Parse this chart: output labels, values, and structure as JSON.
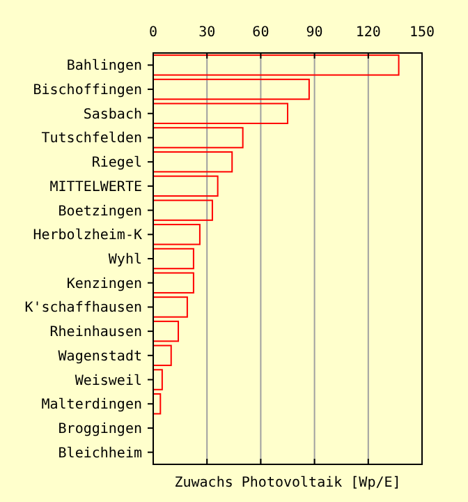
{
  "chart_data": {
    "type": "bar",
    "orientation": "horizontal",
    "xlabel": "Zuwachs Photovoltaik [Wp/E]",
    "categories": [
      "Bahlingen",
      "Bischoffingen",
      "Sasbach",
      "Tutschfelden",
      "Riegel",
      "MITTELWERTE",
      "Boetzingen",
      "Herbolzheim-K",
      "Wyhl",
      "Kenzingen",
      "K'schaffhausen",
      "Rheinhausen",
      "Wagenstadt",
      "Weisweil",
      "Malterdingen",
      "Broggingen",
      "Bleichheim"
    ],
    "values": [
      137,
      87,
      75,
      50,
      44,
      36,
      33,
      26,
      22.5,
      22.5,
      19,
      14,
      10,
      5,
      4,
      0,
      0
    ],
    "color": "#ff0000",
    "xlim": [
      0,
      150
    ],
    "xticks": [
      0,
      30,
      60,
      90,
      120,
      150
    ],
    "grid": "x"
  }
}
